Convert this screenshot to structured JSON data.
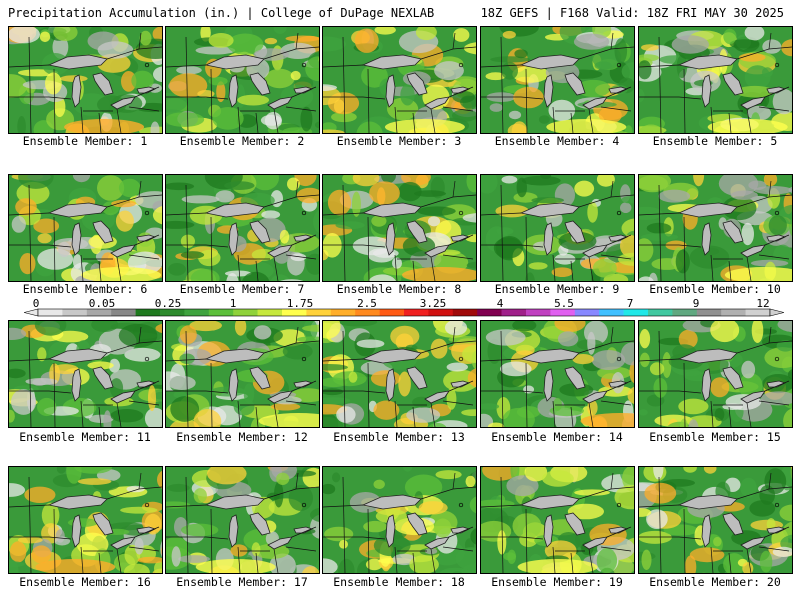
{
  "header": {
    "left": "Precipitation Accumulation (in.) | College of DuPage NEXLAB",
    "right": "18Z GEFS | F168 Valid: 18Z FRI MAY 30 2025"
  },
  "colorbar": {
    "labels": [
      "0",
      "0.05",
      "0.25",
      "1",
      "1.75",
      "2.5",
      "3.25",
      "4",
      "5.5",
      "7",
      "9",
      "12"
    ],
    "colors": [
      "#e8e8e8",
      "#c8c8c8",
      "#a8a8a8",
      "#888888",
      "#1f7a1f",
      "#2e8b2e",
      "#3fa33f",
      "#5cbf3a",
      "#8fd23a",
      "#c6e83c",
      "#ffff4d",
      "#ffd23a",
      "#ffae2a",
      "#ff8a1f",
      "#ff5a14",
      "#f02020",
      "#d01010",
      "#a00a0a",
      "#800050",
      "#a0208a",
      "#c040c0",
      "#e060f0",
      "#8888ff",
      "#40c0ff",
      "#20e8e8",
      "#40c8a0",
      "#60a880",
      "#909090",
      "#b0b0b0",
      "#d0d0d0"
    ]
  },
  "panels": [
    {
      "label": "Ensemble Member: 1"
    },
    {
      "label": "Ensemble Member: 2"
    },
    {
      "label": "Ensemble Member: 3"
    },
    {
      "label": "Ensemble Member: 4"
    },
    {
      "label": "Ensemble Member: 5"
    },
    {
      "label": "Ensemble Member: 6"
    },
    {
      "label": "Ensemble Member: 7"
    },
    {
      "label": "Ensemble Member: 8"
    },
    {
      "label": "Ensemble Member: 9"
    },
    {
      "label": "Ensemble Member: 10"
    },
    {
      "label": "Ensemble Member: 11"
    },
    {
      "label": "Ensemble Member: 12"
    },
    {
      "label": "Ensemble Member: 13"
    },
    {
      "label": "Ensemble Member: 14"
    },
    {
      "label": "Ensemble Member: 15"
    },
    {
      "label": "Ensemble Member: 16"
    },
    {
      "label": "Ensemble Member: 17"
    },
    {
      "label": "Ensemble Member: 18"
    },
    {
      "label": "Ensemble Member: 19"
    },
    {
      "label": "Ensemble Member: 20"
    }
  ]
}
